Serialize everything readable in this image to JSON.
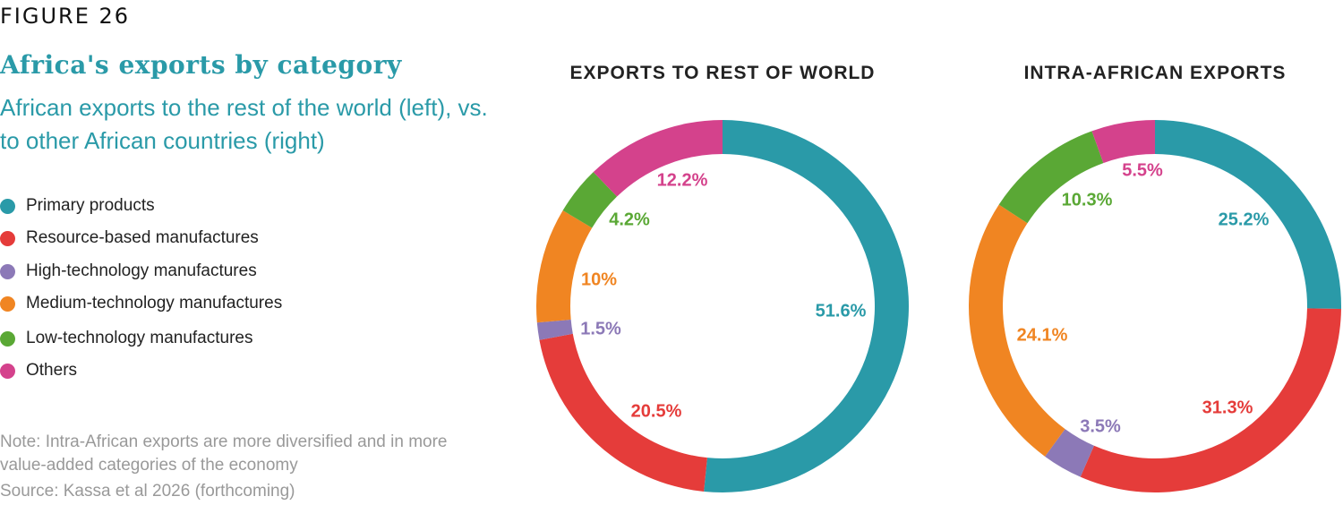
{
  "figure_label": "FIGURE 26",
  "title": "Africa's exports by category",
  "subtitle": "African exports to the rest of the world (left), vs. to other African countries (right)",
  "legend": [
    {
      "label": "Primary products",
      "color": "#2a9aa8"
    },
    {
      "label": "Resource-based manufactures",
      "color": "#e53c3a"
    },
    {
      "label": "High-technology manufactures",
      "color": "#8c79b7"
    },
    {
      "label": "Medium-technology manufactures",
      "color": "#f08522"
    },
    {
      "label": "Low-technology manufactures",
      "color": "#5aa835"
    },
    {
      "label": "Others",
      "color": "#d4428c"
    }
  ],
  "note": "Note: Intra-African exports are more diversified and in more value-added categories of the economy",
  "source": "Source: Kassa et al 2026 (forthcoming)",
  "chart_data": [
    {
      "type": "pie",
      "title": "EXPORTS TO REST OF WORLD",
      "categories": [
        "Primary products",
        "Resource-based manufactures",
        "High-technology manufactures",
        "Medium-technology manufactures",
        "Low-technology manufactures",
        "Others"
      ],
      "values": [
        51.6,
        20.5,
        1.5,
        10,
        4.2,
        12.2
      ],
      "labels": [
        "51.6%",
        "20.5%",
        "1.5%",
        "10%",
        "4.2%",
        "12.2%"
      ]
    },
    {
      "type": "pie",
      "title": "INTRA-AFRICAN EXPORTS",
      "categories": [
        "Primary products",
        "Resource-based manufactures",
        "High-technology manufactures",
        "Medium-technology manufactures",
        "Low-technology manufactures",
        "Others"
      ],
      "values": [
        25.2,
        31.3,
        3.5,
        24.1,
        10.3,
        5.5
      ],
      "labels": [
        "25.2%",
        "31.3%",
        "3.5%",
        "24.1%",
        "10.3%",
        "5.5%"
      ]
    }
  ]
}
